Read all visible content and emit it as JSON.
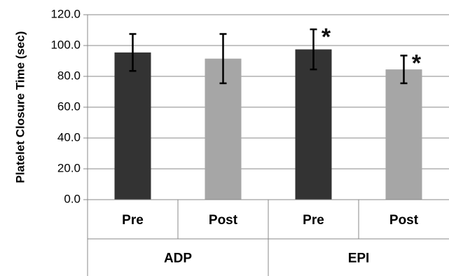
{
  "chart_data": {
    "type": "bar",
    "title": "",
    "ylabel": "Platelet Closure Time (sec)",
    "xlabel": "",
    "ylim": [
      0,
      120
    ],
    "y_ticks": [
      "0.0",
      "20.0",
      "40.0",
      "60.0",
      "80.0",
      "100.0",
      "120.0"
    ],
    "grid": true,
    "groups": [
      {
        "label": "ADP",
        "span": [
          0,
          1
        ]
      },
      {
        "label": "EPI",
        "span": [
          2,
          3
        ]
      }
    ],
    "categories": [
      "Pre",
      "Post",
      "Pre",
      "Post"
    ],
    "values": [
      95.5,
      91.5,
      97.5,
      84.5
    ],
    "error": [
      12,
      16,
      13,
      9
    ],
    "significance": [
      "",
      "",
      "*",
      "*"
    ],
    "colors": {
      "Pre": "#333333",
      "Post": "#a6a6a6",
      "axis": "#888888",
      "grid": "#888888",
      "errorbar": "#000000"
    }
  }
}
